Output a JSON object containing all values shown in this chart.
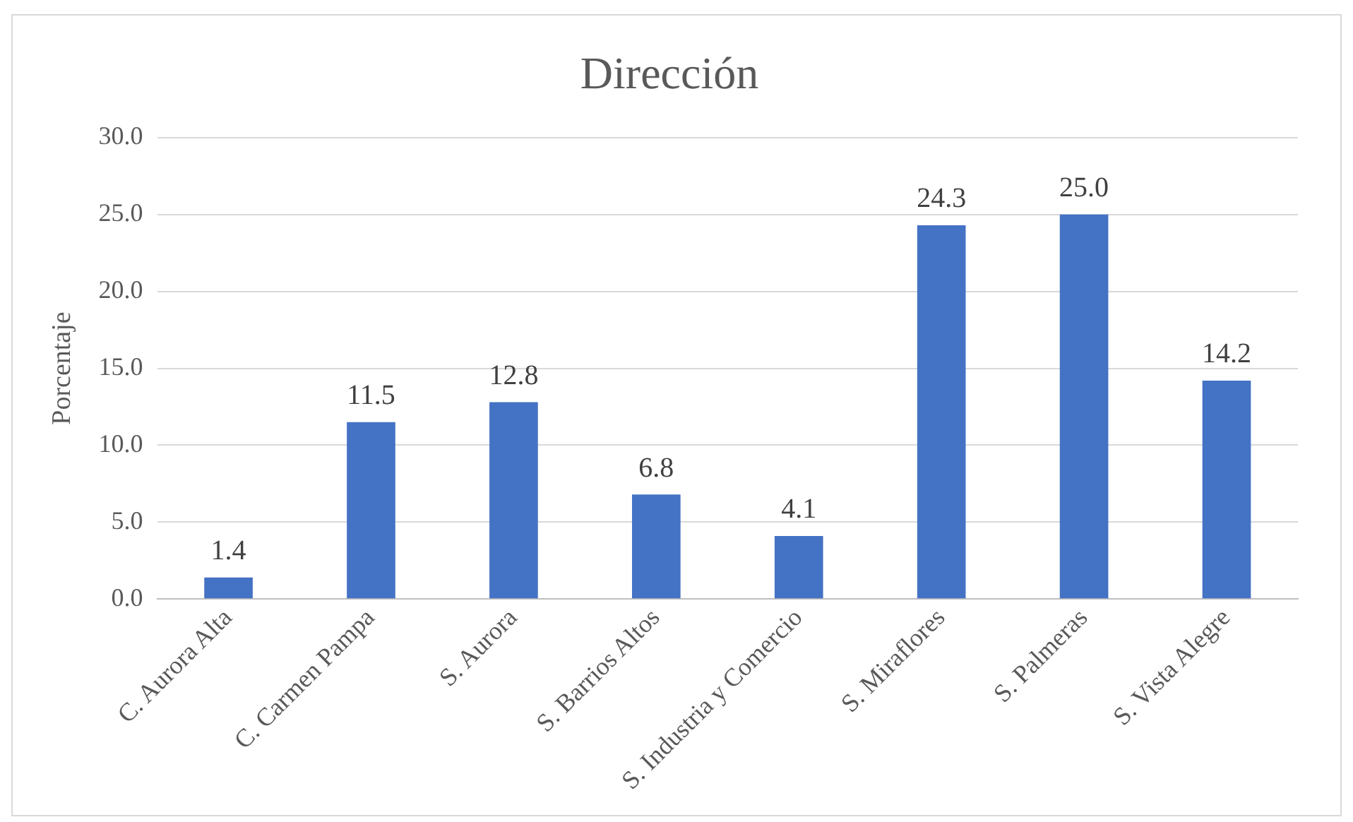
{
  "chart_data": {
    "type": "bar",
    "title": "Dirección",
    "ylabel": "Porcentaje",
    "categories": [
      "C. Aurora Alta",
      "C. Carmen Pampa",
      "S. Aurora",
      "S. Barrios Altos",
      "S. Industria y Comercio",
      "S. Miraflores",
      "S. Palmeras",
      "S. Vista Alegre"
    ],
    "values": [
      1.4,
      11.5,
      12.8,
      6.8,
      4.1,
      24.3,
      25.0,
      14.2
    ],
    "value_labels": [
      "1.4",
      "11.5",
      "12.8",
      "6.8",
      "4.1",
      "24.3",
      "25.0",
      "14.2"
    ],
    "color": "#4472c4",
    "ylim": [
      0,
      30
    ],
    "yticks": [
      {
        "value": 0,
        "label": "0.0"
      },
      {
        "value": 5,
        "label": "5.0"
      },
      {
        "value": 10,
        "label": "10.0"
      },
      {
        "value": 15,
        "label": "15.0"
      },
      {
        "value": 20,
        "label": "20.0"
      },
      {
        "value": 25,
        "label": "25.0"
      },
      {
        "value": 30,
        "label": "30.0"
      }
    ],
    "grid": "y",
    "legend": false
  }
}
